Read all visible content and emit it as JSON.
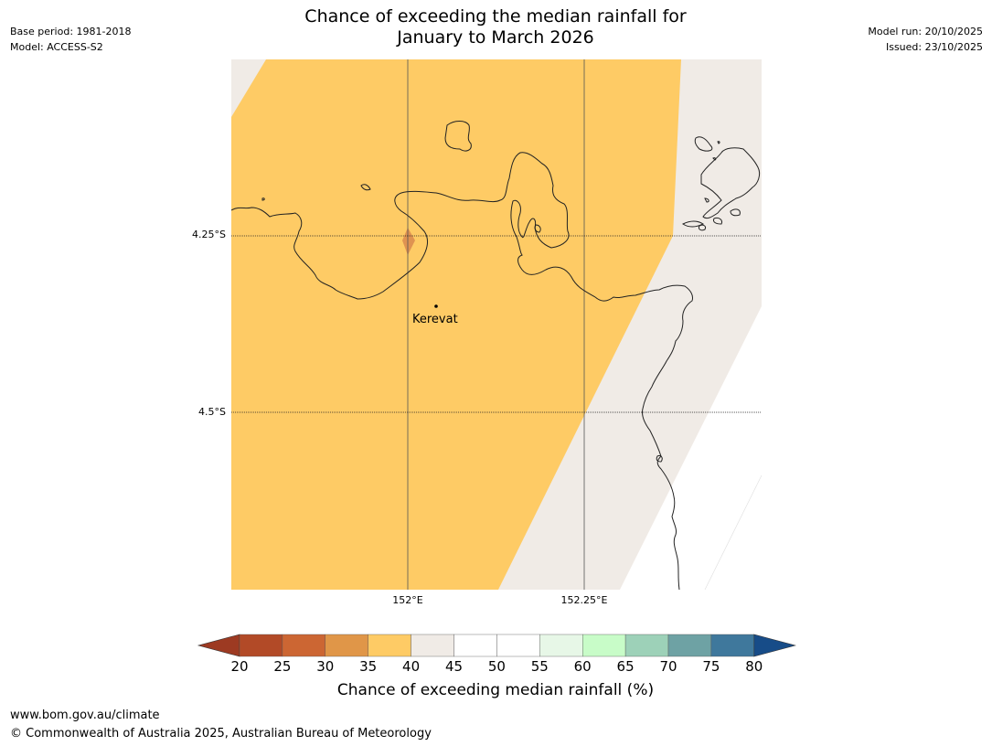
{
  "header": {
    "base_period": "Base period: 1981-2018",
    "model": "Model: ACCESS-S2",
    "model_run": "Model run: 20/10/2025",
    "issued": "Issued: 23/10/2025",
    "title_line1": "Chance of exceeding the median rainfall for",
    "title_line2": "January to March 2026"
  },
  "map": {
    "latitude_labels": [
      "4.25°S",
      "4.5°S"
    ],
    "longitude_labels": [
      "152°E",
      "152.25°E"
    ],
    "places": [
      {
        "name": "Kerevat"
      }
    ],
    "colors": {
      "band_35_40": "#fecb65",
      "band_40_45": "#f0ebe6",
      "no_data": "#ffffff",
      "coastline": "#222222"
    }
  },
  "colorbar": {
    "ticks": [
      "20",
      "25",
      "30",
      "35",
      "40",
      "45",
      "50",
      "55",
      "60",
      "65",
      "70",
      "75",
      "80"
    ],
    "colors": [
      "#9d3a22",
      "#b24a27",
      "#cc6633",
      "#e09648",
      "#fecb65",
      "#f0ebe6",
      "#ffffff",
      "#ffffff",
      "#e7f7e7",
      "#c8fcc8",
      "#9dd1b8",
      "#6ea2a4",
      "#3f789c",
      "#174c88"
    ],
    "label": "Chance of exceeding median rainfall (%)"
  },
  "footer": {
    "url": "www.bom.gov.au/climate",
    "copyright": "© Commonwealth of Australia 2025, Australian Bureau of Meteorology"
  }
}
